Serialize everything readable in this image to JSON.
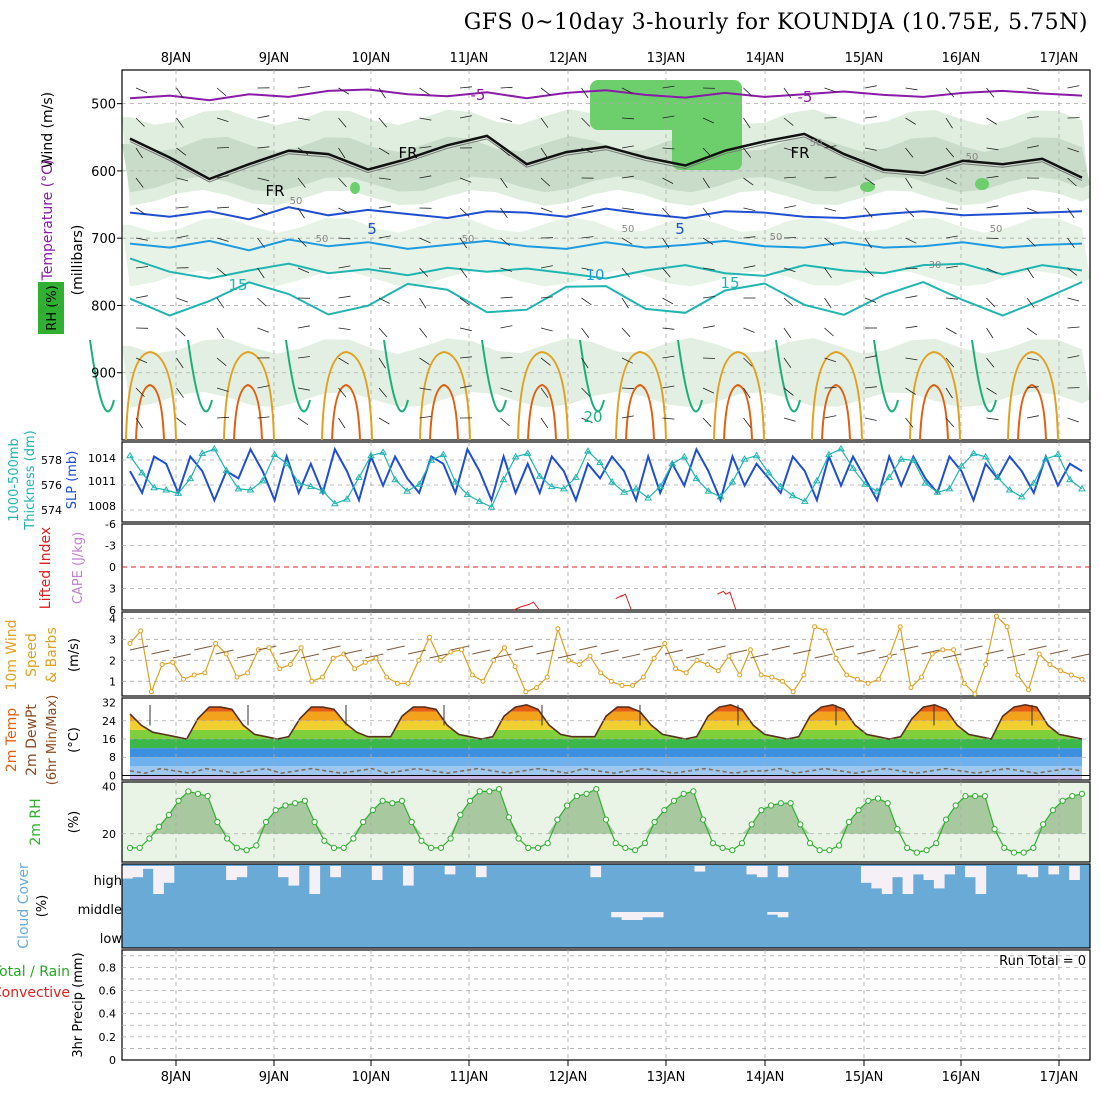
{
  "title": "GFS 0~10day 3-hourly for KOUNDJA (10.75E, 5.75N)",
  "colors": {
    "purple": "#8a1aa8",
    "blue": "#1f4fd0",
    "lightblue": "#1e9be0",
    "teal": "#1fb5b0",
    "green": "#1bb07a",
    "orange": "#e0a020",
    "darkorange": "#e06010",
    "rh_green": "#2fb02f",
    "cloud_blue": "#6aaad6",
    "precip_green": "#22aa22",
    "convective_red": "#e02020"
  },
  "chart_data": [
    {
      "type": "line",
      "panel": "upper-air",
      "x_ticks": [
        "8JAN",
        "9JAN",
        "10JAN",
        "11JAN",
        "12JAN",
        "13JAN",
        "14JAN",
        "15JAN",
        "16JAN",
        "17JAN"
      ],
      "ylabel": "(millibars)",
      "y_ticks": [
        500,
        600,
        700,
        800,
        900
      ],
      "ylim": [
        1000,
        450
      ],
      "y_reversed": true,
      "left_labels": [
        "Wind (m/s)",
        "Temperature (°C)",
        "RH (%)"
      ],
      "contour_labels": {
        "temperature": [
          "-5",
          "-5",
          "FR",
          "FR",
          "FR",
          "5",
          "5",
          "5",
          "10",
          "15",
          "15",
          "20"
        ],
        "rh": [
          "50",
          "50",
          "50",
          "50",
          "50",
          "30",
          "50",
          "50",
          "50"
        ]
      },
      "series": [
        {
          "name": "-5",
          "level_mb": [
            492,
            488,
            495,
            486,
            490,
            481,
            479,
            486,
            489,
            483,
            492,
            484,
            480,
            487,
            491,
            484,
            490,
            486,
            482,
            487,
            490,
            484,
            481,
            485,
            488
          ]
        },
        {
          "name": "FR",
          "level_mb": [
            552,
            580,
            612,
            590,
            570,
            575,
            598,
            582,
            562,
            548,
            590,
            572,
            564,
            580,
            592,
            570,
            556,
            545,
            575,
            598,
            603,
            585,
            590,
            582,
            610
          ]
        },
        {
          "name": "5",
          "level_mb": [
            662,
            668,
            660,
            672,
            654,
            666,
            658,
            664,
            670,
            660,
            662,
            668,
            656,
            664,
            670,
            660,
            662,
            668,
            670,
            664,
            660,
            666,
            664,
            662,
            660
          ]
        },
        {
          "name": "10",
          "level_mb": [
            708,
            714,
            704,
            718,
            702,
            712,
            706,
            716,
            710,
            704,
            712,
            716,
            706,
            714,
            710,
            704,
            712,
            714,
            706,
            714,
            712,
            706,
            714,
            710,
            708
          ]
        },
        {
          "name": "15",
          "level_mb": [
            730,
            750,
            760,
            748,
            738,
            752,
            746,
            755,
            744,
            750,
            745,
            752,
            760,
            748,
            740,
            752,
            756,
            740,
            748,
            752,
            740,
            738,
            754,
            740,
            748
          ]
        }
      ]
    },
    {
      "type": "line",
      "panel": "thickness-slp",
      "ylabel_left": "1000-500mb Thickness (dm)",
      "ylabel_right": "SLP (mb)",
      "y_ticks_left": [
        "578",
        "576",
        "574"
      ],
      "y_ticks_right": [
        "1014",
        "1011",
        "1008"
      ],
      "ylim_left": [
        572.5,
        579.5
      ],
      "ylim_right": [
        1005,
        1016
      ],
      "series": [
        {
          "name": "SLP (mb)",
          "axis": "right",
          "values": [
            1012,
            1009,
            1014,
            1013,
            1009,
            1014,
            1012,
            1008,
            1012,
            1011,
            1015,
            1012,
            1008,
            1014,
            1009,
            1013,
            1009,
            1015,
            1012,
            1008,
            1014,
            1010,
            1014,
            1011,
            1009,
            1014,
            1013,
            1009,
            1015,
            1012,
            1008,
            1014,
            1009,
            1013,
            1009,
            1014,
            1012,
            1008,
            1013,
            1011,
            1014,
            1012,
            1008,
            1014,
            1009,
            1013,
            1010,
            1015,
            1012,
            1008,
            1014,
            1010,
            1013,
            1011,
            1009,
            1014,
            1012,
            1008,
            1014,
            1010,
            1014,
            1011,
            1008,
            1014,
            1010,
            1014,
            1011,
            1009,
            1014,
            1012,
            1008,
            1013,
            1011,
            1014,
            1012,
            1009,
            1014,
            1010,
            1013,
            1012
          ]
        },
        {
          "name": "Thickness (dm)",
          "axis": "left",
          "values": [
            578.3,
            576.8,
            575.5,
            575.3,
            575.0,
            576.3,
            578.5,
            578.9,
            577.0,
            575.4,
            575.3,
            576.1,
            578.4,
            577.6,
            575.9,
            575.6,
            575.2,
            574.1,
            574.5,
            576.4,
            578.3,
            578.6,
            576.2,
            575.2,
            575.8,
            577.9,
            578.4,
            576.0,
            574.9,
            574.3,
            573.8,
            576.2,
            578.2,
            578.5,
            576.5,
            575.6,
            575.4,
            576.4,
            578.7,
            577.7,
            576.0,
            575.1,
            575.4,
            574.6,
            575.6,
            577.6,
            578.2,
            576.3,
            575.2,
            574.7,
            576.0,
            578.0,
            578.3,
            576.8,
            575.6,
            574.8,
            574.3,
            576.1,
            578.4,
            578.9,
            577.2,
            575.8,
            575.2,
            576.4,
            578.0,
            577.9,
            575.9,
            575.1,
            575.4,
            577.4,
            578.5,
            578.2,
            576.4,
            575.3,
            574.7,
            575.9,
            578.0,
            578.4,
            576.2,
            575.4
          ]
        }
      ]
    },
    {
      "type": "line",
      "panel": "lifted-index-cape",
      "ylabel": "Lifted Index",
      "ylabel2": "CAPE (J/kg)",
      "y_ticks": [
        "-6",
        "-3",
        "0",
        "3",
        "6"
      ],
      "ylim": [
        -6,
        6
      ],
      "reference_line": 0,
      "series": [
        {
          "name": "Lifted Index",
          "values": [
            {
              "x": 0.405,
              "y": 6.0
            },
            {
              "x": 0.425,
              "y": 5.2
            },
            {
              "x": 0.51,
              "y": 4.4
            },
            {
              "x": 0.52,
              "y": 4.1
            },
            {
              "x": 0.615,
              "y": 3.8
            },
            {
              "x": 0.628,
              "y": 3.8
            }
          ]
        }
      ]
    },
    {
      "type": "line",
      "panel": "10m-wind",
      "ylabel": "10m Wind Speed & Barbs (m/s)",
      "y_ticks": [
        "1",
        "2",
        "3",
        "4"
      ],
      "ylim": [
        0.3,
        4.3
      ],
      "series": [
        {
          "name": "Speed",
          "values": [
            2.8,
            3.4,
            0.5,
            1.8,
            1.9,
            1.1,
            1.3,
            1.4,
            2.8,
            2.3,
            1.2,
            1.4,
            2.5,
            2.6,
            1.6,
            1.8,
            2.6,
            1.0,
            1.2,
            2.1,
            2.3,
            1.6,
            1.9,
            2.1,
            1.2,
            0.9,
            0.9,
            2.0,
            3.1,
            2.0,
            2.4,
            2.5,
            1.3,
            1.0,
            2.0,
            2.6,
            1.7,
            0.5,
            0.7,
            1.2,
            3.5,
            2.0,
            1.8,
            2.2,
            1.4,
            1.0,
            0.8,
            0.8,
            1.2,
            2.1,
            2.8,
            1.6,
            1.4,
            2.0,
            1.8,
            1.5,
            2.2,
            1.3,
            2.5,
            1.3,
            1.2,
            1.0,
            0.5,
            1.3,
            3.6,
            3.4,
            2.1,
            1.3,
            1.1,
            0.9,
            1.1,
            2.2,
            3.6,
            0.7,
            1.2,
            2.3,
            2.5,
            2.5,
            0.9,
            0.4,
            1.8,
            4.1,
            3.6,
            1.3,
            0.6,
            2.3,
            1.8,
            1.5,
            1.3,
            1.1
          ]
        }
      ]
    },
    {
      "type": "area",
      "panel": "2m-temp",
      "ylabel": "2m Temp / 2m DewPt (6hr Min/Max) (°C)",
      "y_ticks": [
        "0",
        "8",
        "16",
        "24",
        "32"
      ],
      "ylim": [
        -2,
        34
      ],
      "series": [
        {
          "name": "2m Temp",
          "values": [
            27,
            22,
            19,
            18,
            17,
            16,
            25,
            30,
            30,
            29,
            22,
            18,
            17,
            16,
            17,
            25,
            30,
            30,
            29,
            23,
            19,
            17,
            17,
            17,
            26,
            30,
            30,
            29,
            22,
            18,
            17,
            16,
            17,
            26,
            30,
            31,
            29,
            22,
            18,
            17,
            17,
            17,
            26,
            30,
            30,
            28,
            22,
            18,
            17,
            16,
            17,
            26,
            30,
            31,
            29,
            22,
            18,
            17,
            16,
            17,
            26,
            30,
            31,
            29,
            22,
            18,
            17,
            16,
            17,
            25,
            30,
            31,
            29,
            22,
            18,
            17,
            16,
            26,
            30,
            31,
            30,
            22,
            18,
            17,
            16
          ]
        },
        {
          "name": "2m DewPt",
          "values": [
            2,
            1,
            3,
            2,
            1,
            3,
            2,
            1,
            2,
            3,
            1,
            2,
            3,
            2,
            1,
            2,
            3,
            1,
            2,
            3,
            2,
            1,
            2,
            3,
            2,
            1,
            2,
            3,
            2,
            1,
            3,
            2,
            1,
            2,
            3,
            2,
            1,
            2,
            3,
            2,
            1,
            2,
            2,
            3,
            1,
            2,
            3,
            2,
            1,
            2,
            3,
            2,
            1,
            2,
            3,
            2,
            1,
            2,
            3,
            2,
            1,
            2,
            3,
            2
          ]
        }
      ]
    },
    {
      "type": "area",
      "panel": "2m-rh",
      "ylabel": "2m RH (%)",
      "y_ticks": [
        "20",
        "40"
      ],
      "ylim": [
        8,
        42
      ],
      "series": [
        {
          "name": "2m RH",
          "values": [
            14,
            14,
            18,
            23,
            28,
            34,
            38,
            37,
            36,
            25,
            18,
            14,
            13,
            15,
            25,
            30,
            32,
            33,
            34,
            25,
            17,
            14,
            14,
            18,
            25,
            30,
            34,
            33,
            34,
            25,
            17,
            14,
            14,
            18,
            28,
            34,
            38,
            38,
            39,
            27,
            18,
            14,
            14,
            16,
            26,
            32,
            36,
            37,
            39,
            26,
            16,
            14,
            13,
            16,
            25,
            30,
            34,
            37,
            38,
            26,
            16,
            14,
            13,
            16,
            24,
            30,
            32,
            33,
            33,
            24,
            16,
            13,
            13,
            15,
            25,
            30,
            34,
            35,
            33,
            22,
            14,
            12,
            13,
            16,
            26,
            32,
            36,
            36,
            36,
            22,
            14,
            12,
            12,
            14,
            24,
            30,
            34,
            36,
            37
          ]
        }
      ]
    },
    {
      "type": "bar",
      "panel": "cloud-cover",
      "ylabel": "Cloud Cover (%)",
      "levels": [
        "high",
        "middle",
        "low"
      ],
      "series": [
        {
          "name": "high",
          "values": [
            55,
            60,
            90,
            0,
            40,
            100,
            100,
            100,
            100,
            100,
            50,
            60,
            100,
            100,
            100,
            60,
            30,
            100,
            0,
            100,
            60,
            100,
            100,
            100,
            50,
            100,
            100,
            30,
            100,
            100,
            100,
            70,
            100,
            100,
            60,
            100,
            100,
            100,
            100,
            100,
            100,
            100,
            100,
            100,
            100,
            60,
            100,
            100,
            100,
            100,
            100,
            100,
            100,
            100,
            100,
            80,
            100,
            100,
            100,
            100,
            70,
            60,
            100,
            60,
            100,
            100,
            100,
            100,
            100,
            100,
            100,
            40,
            20,
            0,
            60,
            0,
            70,
            50,
            20,
            70,
            100,
            60,
            0,
            100,
            100,
            100,
            70,
            60,
            100,
            70,
            100,
            50,
            100
          ]
        },
        {
          "name": "middle",
          "values": [
            0,
            0,
            0,
            0,
            0,
            0,
            0,
            0,
            0,
            0,
            0,
            0,
            0,
            0,
            0,
            0,
            0,
            0,
            0,
            0,
            0,
            0,
            0,
            0,
            0,
            0,
            0,
            0,
            0,
            0,
            0,
            0,
            0,
            0,
            0,
            0,
            0,
            0,
            0,
            0,
            0,
            0,
            0,
            0,
            0,
            0,
            0,
            20,
            30,
            30,
            20,
            20,
            0,
            0,
            0,
            0,
            0,
            0,
            0,
            0,
            0,
            0,
            10,
            20,
            0,
            0,
            0,
            0,
            0,
            0,
            0,
            0,
            0,
            0,
            0,
            0,
            0,
            0,
            0,
            0,
            0,
            0,
            0,
            0,
            0,
            0,
            0,
            0,
            0,
            0,
            0,
            0
          ]
        },
        {
          "name": "low",
          "values": []
        }
      ]
    },
    {
      "type": "bar",
      "panel": "precip",
      "ylabel": "3hr Precip (mm)",
      "left_labels": [
        "Total / Rain",
        "Convective"
      ],
      "y_ticks": [
        "0",
        "0.2",
        "0.4",
        "0.6",
        "0.8"
      ],
      "ylim": [
        0,
        0.95
      ],
      "run_total": "Run Total = 0",
      "series": [
        {
          "name": "Total / Rain",
          "values": []
        },
        {
          "name": "Convective",
          "values": []
        }
      ]
    }
  ]
}
